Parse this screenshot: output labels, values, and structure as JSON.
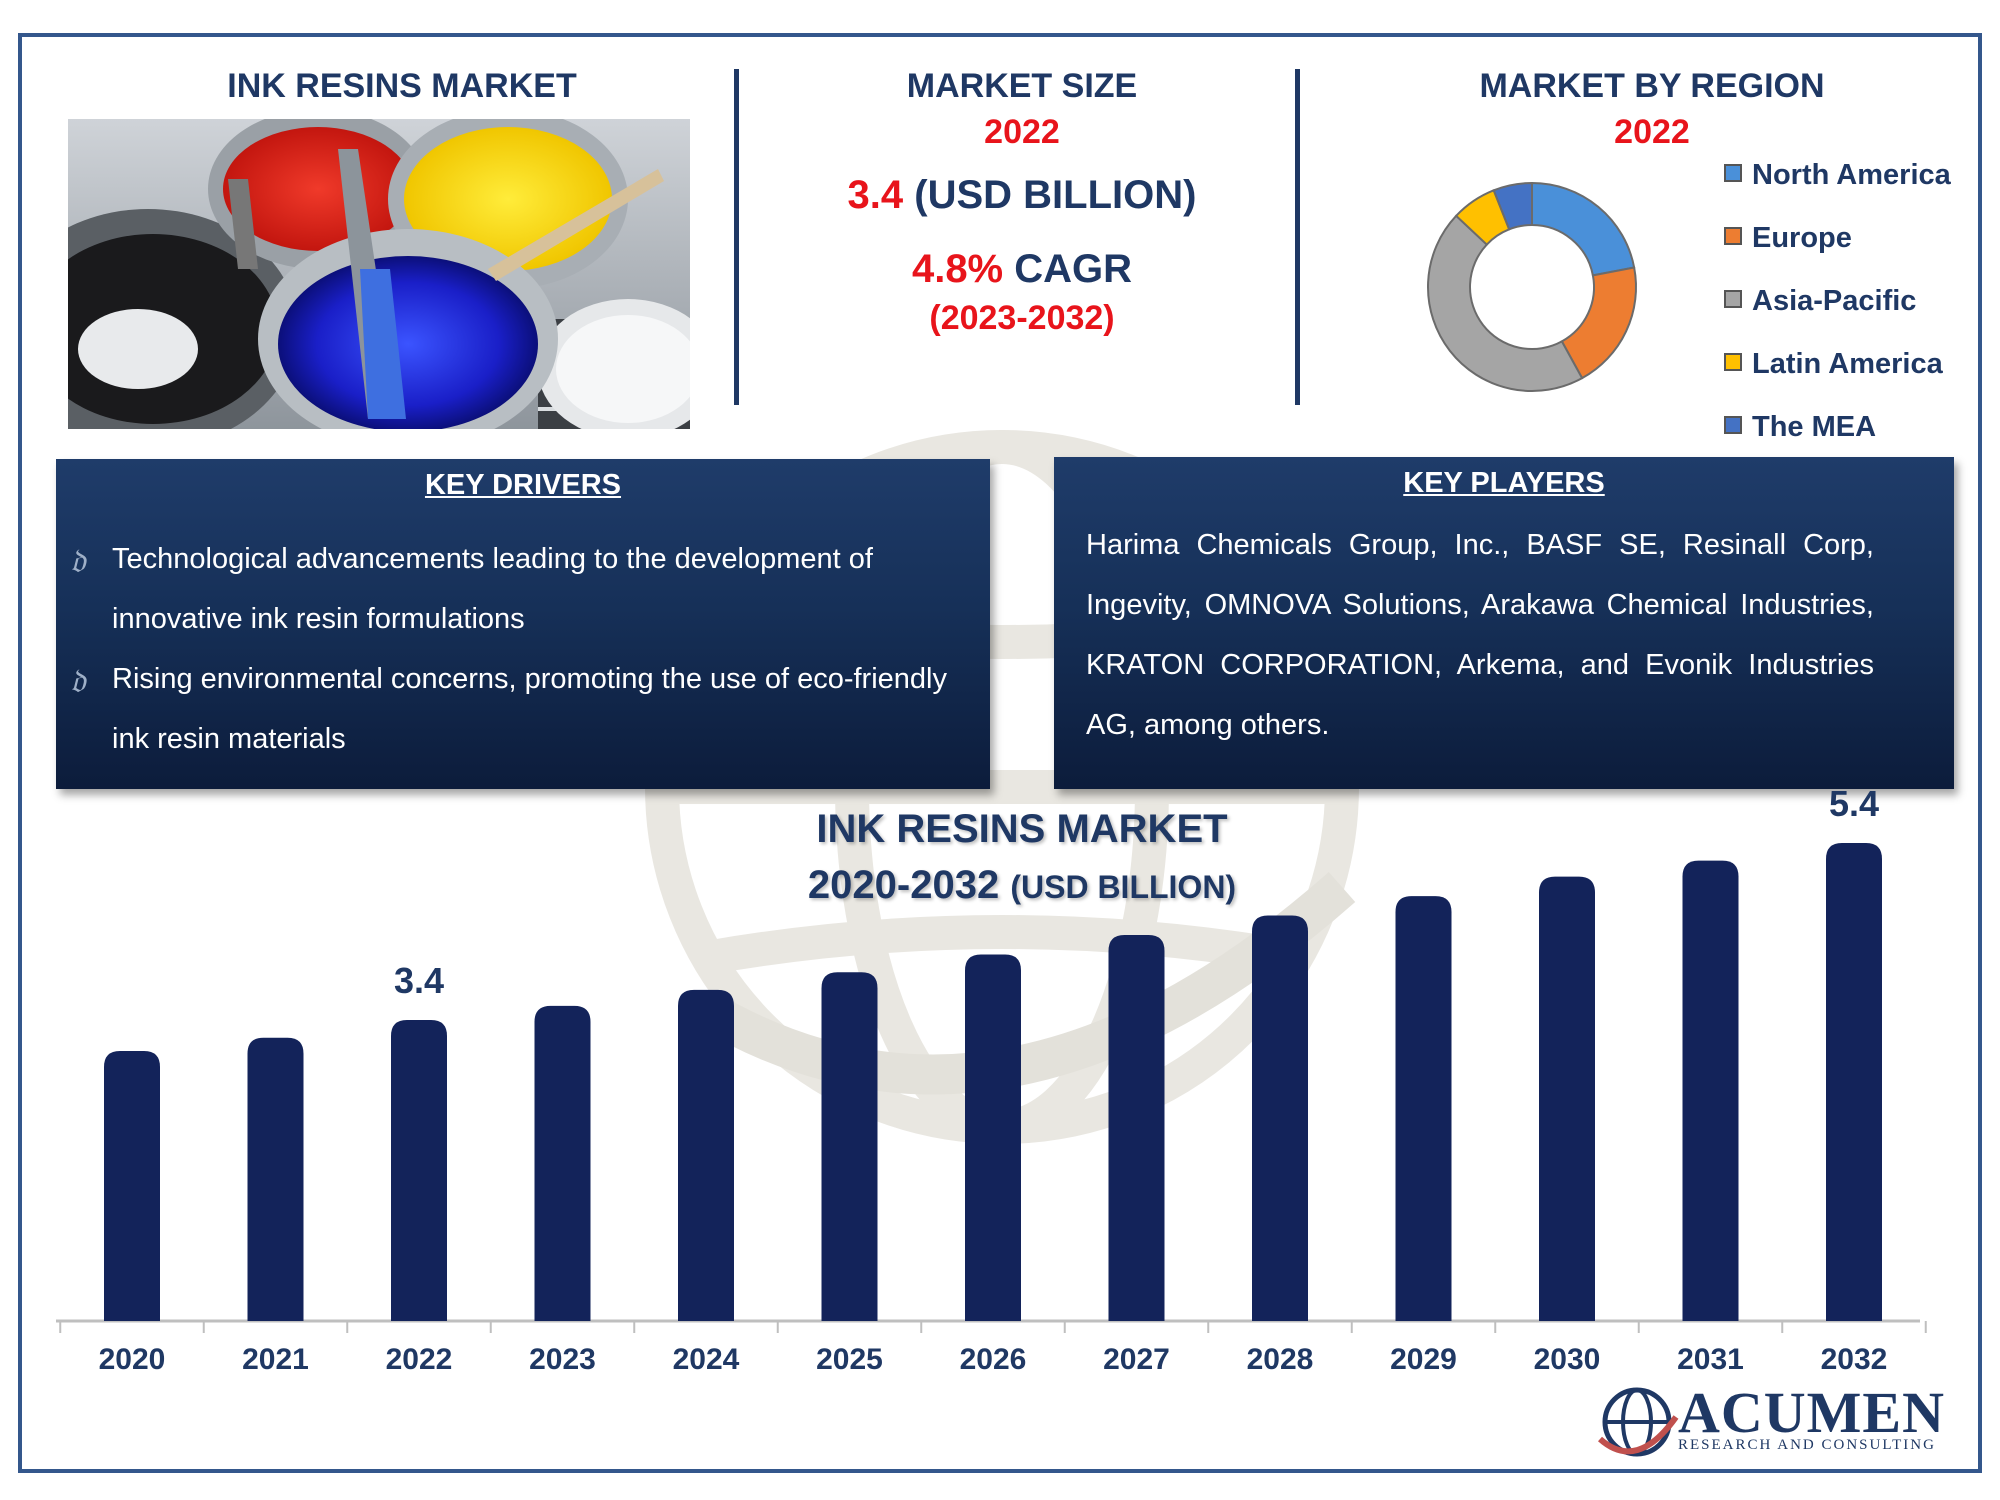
{
  "left_header": {
    "title": "INK RESINS MARKET"
  },
  "market_size": {
    "title": "MARKET SIZE",
    "year": "2022",
    "value": "3.4",
    "unit": "(USD BILLION)",
    "cagr_value": "4.8%",
    "cagr_label": "CAGR",
    "cagr_period": "(2023-2032)"
  },
  "region": {
    "title": "MARKET BY REGION",
    "year": "2022",
    "legend": [
      {
        "name": "North America",
        "color": "#4a90d9"
      },
      {
        "name": "Europe",
        "color": "#ed7d31"
      },
      {
        "name": "Asia-Pacific",
        "color": "#a5a5a5"
      },
      {
        "name": "Latin America",
        "color": "#ffc000"
      },
      {
        "name": "The MEA",
        "color": "#4472c4"
      }
    ]
  },
  "key_drivers": {
    "title": "KEY DRIVERS",
    "items": [
      {
        "line1": "Technological advancements leading to the development of",
        "line2": "innovative ink resin formulations"
      },
      {
        "line1": "Rising environmental concerns, promoting the use of eco-friendly",
        "line2": "ink resin materials"
      }
    ]
  },
  "key_players": {
    "title": "KEY PLAYERS",
    "text": "Harima Chemicals Group, Inc., BASF SE, Resinall Corp, Ingevity, OMNOVA Solutions, Arakawa Chemical Industries, KRATON CORPORATION, Arkema, and Evonik Industries AG, among others."
  },
  "brand": {
    "name": "ACUMEN",
    "tagline": "RESEARCH AND CONSULTING"
  },
  "chart_data": [
    {
      "type": "pie",
      "categories": [
        "North America",
        "Europe",
        "Asia-Pacific",
        "Latin America",
        "The MEA"
      ],
      "values": [
        22,
        20,
        45,
        7,
        6
      ],
      "colors": [
        "#4a90d9",
        "#ed7d31",
        "#a5a5a5",
        "#ffc000",
        "#4472c4"
      ],
      "title": "MARKET BY REGION",
      "subtitle": "2022",
      "legend": "right"
    },
    {
      "type": "bar",
      "title": "INK RESINS MARKET",
      "subtitle_main": "2020-2032",
      "subtitle_unit": "(USD BILLION)",
      "categories": [
        "2020",
        "2021",
        "2022",
        "2023",
        "2024",
        "2025",
        "2026",
        "2027",
        "2028",
        "2029",
        "2030",
        "2031",
        "2032"
      ],
      "values": [
        3.05,
        3.2,
        3.4,
        3.56,
        3.74,
        3.94,
        4.14,
        4.36,
        4.58,
        4.8,
        5.02,
        5.2,
        5.4
      ],
      "data_labels": {
        "2022": "3.4",
        "2032": "5.4"
      },
      "ylim": [
        0,
        6.1
      ],
      "grid": false,
      "bar_color": "#13235a"
    }
  ]
}
